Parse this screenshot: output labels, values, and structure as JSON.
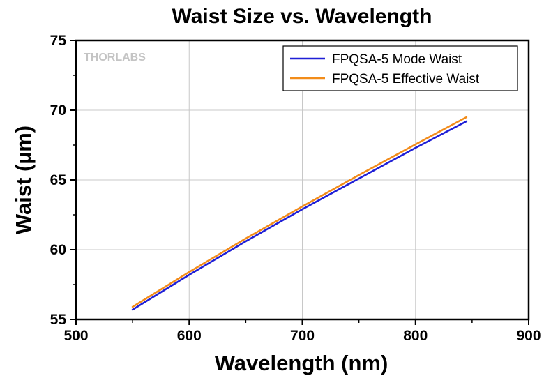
{
  "chart_data": {
    "type": "line",
    "title": "Waist Size vs. Wavelength",
    "xlabel": "Wavelength (nm)",
    "ylabel": "Waist (µm)",
    "xlim": [
      500,
      900
    ],
    "ylim": [
      55,
      75
    ],
    "xticks": [
      500,
      600,
      700,
      800,
      900
    ],
    "yticks": [
      55,
      60,
      65,
      70,
      75
    ],
    "grid": true,
    "legend_position": "top-right",
    "watermark": "THORLABS",
    "series": [
      {
        "name": "FPQSA-5 Mode Waist",
        "color": "#1f1fd6",
        "x": [
          550,
          600,
          650,
          700,
          750,
          800,
          845
        ],
        "y": [
          55.7,
          58.2,
          60.6,
          62.9,
          65.1,
          67.3,
          69.2
        ]
      },
      {
        "name": "FPQSA-5 Effective Waist",
        "color": "#f28c1a",
        "x": [
          550,
          600,
          650,
          700,
          750,
          800,
          845
        ],
        "y": [
          55.9,
          58.4,
          60.8,
          63.1,
          65.35,
          67.55,
          69.5
        ]
      }
    ]
  }
}
